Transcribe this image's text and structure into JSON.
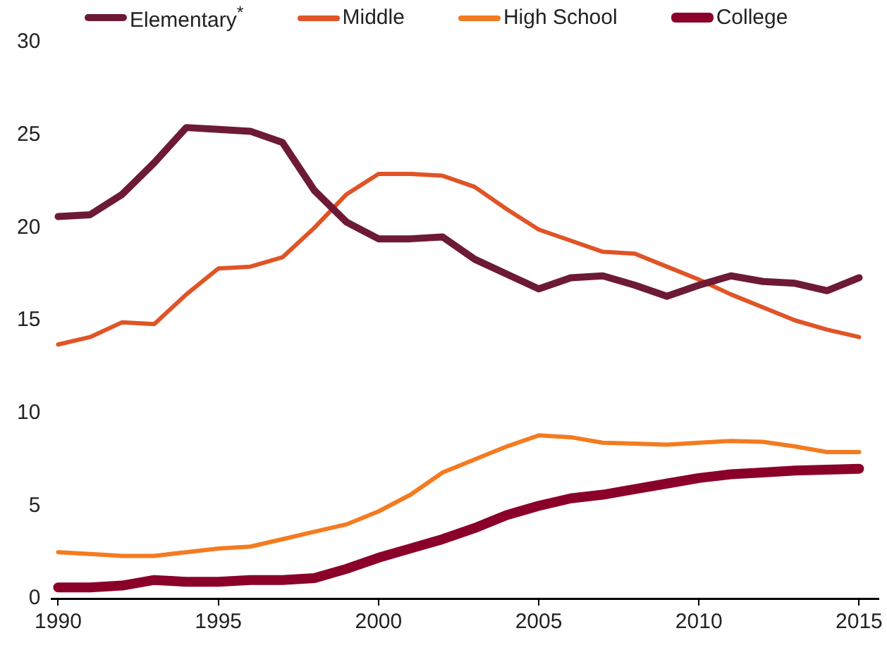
{
  "chart_data": {
    "type": "line",
    "x": [
      1990,
      1991,
      1992,
      1993,
      1994,
      1995,
      1996,
      1997,
      1998,
      1999,
      2000,
      2001,
      2002,
      2003,
      2004,
      2005,
      2006,
      2007,
      2008,
      2009,
      2010,
      2011,
      2012,
      2013,
      2014,
      2015
    ],
    "series": [
      {
        "name": "Elementary$^{*}$",
        "color": "#6d1a36",
        "values": [
          20.6,
          20.7,
          21.8,
          23.5,
          25.4,
          25.3,
          25.2,
          24.6,
          22.0,
          20.3,
          19.4,
          19.4,
          19.5,
          18.3,
          17.5,
          16.7,
          17.3,
          17.4,
          16.9,
          16.3,
          16.9,
          17.4,
          17.1,
          17.0,
          16.6,
          17.3
        ]
      },
      {
        "name": "Middle",
        "color": "#e05426",
        "values": [
          13.7,
          14.1,
          14.9,
          14.8,
          16.4,
          17.8,
          17.9,
          18.4,
          20.0,
          21.8,
          22.9,
          22.9,
          22.8,
          22.2,
          21.0,
          19.9,
          19.3,
          18.7,
          18.6,
          17.9,
          17.2,
          16.4,
          15.7,
          15.0,
          14.5,
          14.1
        ]
      },
      {
        "name": "High School",
        "color": "#f47b20",
        "values": [
          2.5,
          2.4,
          2.3,
          2.3,
          2.5,
          2.7,
          2.8,
          3.2,
          3.6,
          4.0,
          4.7,
          5.6,
          6.8,
          7.5,
          8.2,
          8.8,
          8.7,
          8.4,
          8.35,
          8.3,
          8.4,
          8.5,
          8.45,
          8.2,
          7.9,
          7.9
        ]
      },
      {
        "name": "College",
        "color": "#8b0029",
        "values": [
          0.6,
          0.6,
          0.7,
          1.0,
          0.9,
          0.9,
          1.0,
          1.0,
          1.1,
          1.6,
          2.2,
          2.7,
          3.2,
          3.8,
          4.5,
          5.0,
          5.4,
          5.6,
          5.9,
          6.2,
          6.5,
          6.7,
          6.8,
          6.9,
          6.95,
          7.0
        ]
      }
    ],
    "xlim": [
      1989.8,
      2015.6
    ],
    "xticks": [
      1990,
      1995,
      2000,
      2005,
      2010,
      2015
    ],
    "ylim": [
      0,
      30
    ],
    "yticks": [
      0,
      5,
      10,
      15,
      20,
      25,
      30
    ],
    "legend": "top",
    "marker": "none",
    "line_style": "solid"
  }
}
